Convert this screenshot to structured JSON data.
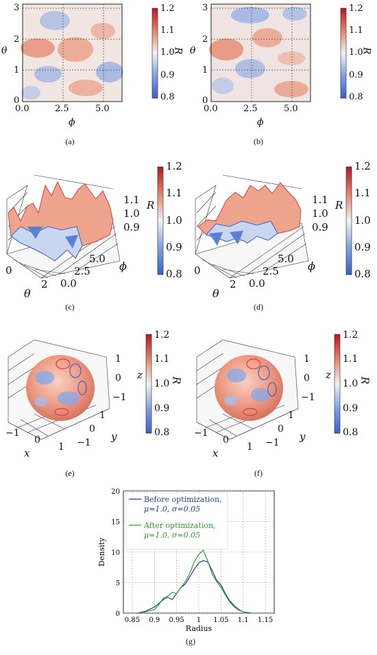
{
  "colors": {
    "low": "#3a5fcd",
    "mid": "#f2f2f2",
    "high": "#b2182b",
    "blue_line": "#1f3d8c",
    "green_line": "#2ca02c"
  },
  "colorbar": {
    "label": "R",
    "ticks": [
      "1.2",
      "1.1",
      "1.0",
      "0.9",
      "0.8"
    ]
  },
  "panel_a": {
    "caption": "(a)",
    "xlabel": "ϕ",
    "ylabel": "θ",
    "xticks": [
      "0.0",
      "2.5",
      "5.0"
    ],
    "yticks": [
      "3",
      "2",
      "1",
      "0"
    ]
  },
  "panel_b": {
    "caption": "(b)",
    "xlabel": "ϕ",
    "ylabel": "θ",
    "xticks": [
      "0.0",
      "2.5",
      "5.0"
    ],
    "yticks": [
      "3",
      "2",
      "1",
      "0"
    ]
  },
  "panel_c": {
    "caption": "(c)",
    "zticks": [
      "1.1",
      "1.0",
      "0.9"
    ],
    "theta_label": "θ",
    "phi_label": "ϕ",
    "theta_ticks": [
      "0",
      "2"
    ],
    "phi_ticks": [
      "5.0",
      "2.5",
      "0.0"
    ],
    "zlabel": "R"
  },
  "panel_d": {
    "caption": "(d)",
    "zticks": [
      "1.1",
      "1.0",
      "0.9"
    ],
    "theta_label": "θ",
    "phi_label": "ϕ",
    "theta_ticks": [
      "0",
      "2"
    ],
    "phi_ticks": [
      "5.0",
      "2.5",
      "0.0"
    ],
    "zlabel": "R"
  },
  "panel_e": {
    "caption": "(e)",
    "zticks": [
      "1",
      "0",
      "−1"
    ],
    "zlabel": "z",
    "xlabel": "x",
    "ylabel": "y",
    "xticks": [
      "−1",
      "0",
      "1"
    ],
    "yticks": [
      "1",
      "0",
      "−1"
    ]
  },
  "panel_f": {
    "caption": "(f)",
    "zticks": [
      "1",
      "0",
      "−1"
    ],
    "zlabel": "z",
    "xlabel": "x",
    "ylabel": "y",
    "xticks": [
      "−1",
      "0",
      "1"
    ],
    "yticks": [
      "1",
      "0",
      "−1"
    ]
  },
  "panel_g": {
    "caption": "(g)"
  },
  "chart_data": {
    "type": "line",
    "xlabel": "Radius",
    "ylabel": "Density",
    "xlim": [
      0.83,
      1.17
    ],
    "ylim": [
      0,
      20
    ],
    "xticks": [
      "0.85",
      "0.9",
      "0.95",
      "1",
      "1.05",
      "1.1",
      "1.15"
    ],
    "yticks": [
      "0",
      "5",
      "10",
      "15",
      "20"
    ],
    "grid": true,
    "legend": "top-left",
    "series": [
      {
        "name": "Before optimization,",
        "params": "μ=1.0, σ=0.05",
        "color": "#1f3d8c",
        "x": [
          0.86,
          0.88,
          0.9,
          0.91,
          0.92,
          0.93,
          0.94,
          0.95,
          0.96,
          0.97,
          0.98,
          0.99,
          1.0,
          1.01,
          1.02,
          1.03,
          1.04,
          1.05,
          1.06,
          1.07,
          1.08,
          1.09,
          1.1,
          1.12
        ],
        "y": [
          0,
          0.3,
          1.0,
          1.6,
          2.2,
          2.6,
          2.2,
          3.2,
          4.2,
          4.8,
          6.0,
          7.2,
          8.2,
          8.6,
          8.4,
          7.0,
          5.4,
          4.6,
          3.2,
          2.0,
          1.2,
          0.6,
          0.2,
          0
        ]
      },
      {
        "name": "After optimization,",
        "params": "μ=1.0, σ=0.05",
        "color": "#2ca02c",
        "x": [
          0.86,
          0.88,
          0.9,
          0.91,
          0.92,
          0.93,
          0.94,
          0.95,
          0.96,
          0.97,
          0.98,
          0.99,
          1.0,
          1.01,
          1.02,
          1.03,
          1.04,
          1.05,
          1.06,
          1.07,
          1.08,
          1.09,
          1.1,
          1.12
        ],
        "y": [
          0,
          0.2,
          0.6,
          1.4,
          2.4,
          2.8,
          3.4,
          3.2,
          4.2,
          5.2,
          6.6,
          8.4,
          9.6,
          10.3,
          8.6,
          6.4,
          5.2,
          4.2,
          3.0,
          1.8,
          1.0,
          0.5,
          0.2,
          0
        ]
      }
    ]
  }
}
